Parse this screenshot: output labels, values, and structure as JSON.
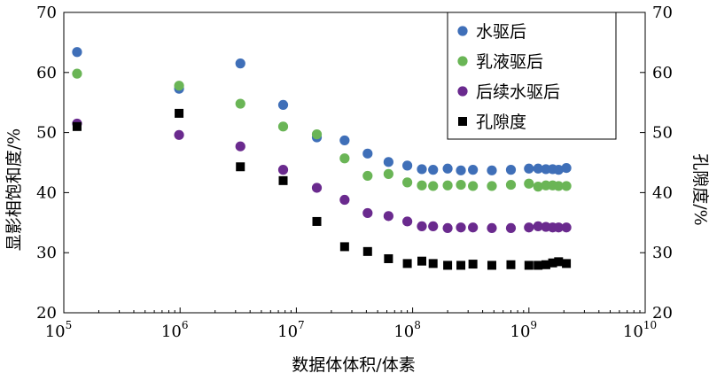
{
  "chart_data": {
    "type": "scatter",
    "xlabel": "数据体体积/体素",
    "ylabel_left": "显影相饱和度/%",
    "ylabel_right": "孔隙度/%",
    "x_scale": "log",
    "xlim": [
      100000,
      10000000000
    ],
    "ylim": [
      20,
      70
    ],
    "x_ticks": [
      {
        "value": 100000,
        "base": "10",
        "exp": "5"
      },
      {
        "value": 1000000,
        "base": "10",
        "exp": "6"
      },
      {
        "value": 10000000,
        "base": "10",
        "exp": "7"
      },
      {
        "value": 100000000,
        "base": "10",
        "exp": "8"
      },
      {
        "value": 1000000000,
        "base": "10",
        "exp": "9"
      },
      {
        "value": 10000000000,
        "base": "10",
        "exp": "10"
      }
    ],
    "y_ticks": [
      "20",
      "30",
      "40",
      "50",
      "60",
      "70"
    ],
    "legend_position": "top-right",
    "series": [
      {
        "name": "水驱后",
        "marker": "circle",
        "color": "#3F6FB8",
        "x": [
          130000,
          980000,
          3300000,
          7700000,
          15000000,
          26000000,
          41000000,
          62000000,
          90000000,
          120000000,
          150000000,
          200000000,
          260000000,
          330000000,
          480000000,
          700000000,
          1000000000,
          1200000000,
          1400000000,
          1600000000,
          1800000000,
          2100000000
        ],
        "y": [
          63.4,
          57.3,
          61.5,
          54.6,
          49.2,
          48.7,
          46.5,
          45.1,
          44.5,
          43.9,
          43.8,
          44.0,
          43.7,
          43.8,
          43.7,
          43.8,
          44.0,
          44.0,
          43.9,
          43.9,
          43.8,
          44.1
        ]
      },
      {
        "name": "乳液驱后",
        "marker": "circle",
        "color": "#6AB556",
        "x": [
          130000,
          980000,
          3300000,
          7700000,
          15000000,
          26000000,
          41000000,
          62000000,
          90000000,
          120000000,
          150000000,
          200000000,
          260000000,
          330000000,
          480000000,
          700000000,
          1000000000,
          1200000000,
          1400000000,
          1600000000,
          1800000000,
          2100000000
        ],
        "y": [
          59.8,
          57.8,
          54.8,
          51.0,
          49.7,
          45.7,
          42.8,
          43.1,
          41.7,
          41.2,
          41.1,
          41.2,
          41.3,
          41.1,
          41.1,
          41.3,
          41.5,
          41.0,
          41.2,
          41.2,
          41.1,
          41.1
        ]
      },
      {
        "name": "后续水驱后",
        "marker": "circle",
        "color": "#6A2A8E",
        "x": [
          130000,
          980000,
          3300000,
          7700000,
          15000000,
          26000000,
          41000000,
          62000000,
          90000000,
          120000000,
          150000000,
          200000000,
          260000000,
          330000000,
          480000000,
          700000000,
          1000000000,
          1200000000,
          1400000000,
          1600000000,
          1800000000,
          2100000000
        ],
        "y": [
          51.5,
          49.6,
          47.7,
          43.8,
          40.8,
          38.8,
          36.6,
          36.1,
          35.2,
          34.4,
          34.4,
          34.1,
          34.2,
          34.2,
          34.1,
          34.1,
          34.2,
          34.4,
          34.3,
          34.2,
          34.2,
          34.2
        ]
      },
      {
        "name": "孔隙度",
        "marker": "square",
        "color": "#000000",
        "x": [
          130000,
          980000,
          3300000,
          7700000,
          15000000,
          26000000,
          41000000,
          62000000,
          90000000,
          120000000,
          150000000,
          200000000,
          260000000,
          330000000,
          480000000,
          700000000,
          1000000000,
          1200000000,
          1400000000,
          1600000000,
          1800000000,
          2100000000
        ],
        "y": [
          51.0,
          53.2,
          44.3,
          42.0,
          35.2,
          31.0,
          30.2,
          29.0,
          28.2,
          28.6,
          28.2,
          27.9,
          27.9,
          28.1,
          27.9,
          28.0,
          27.9,
          27.9,
          28.0,
          28.3,
          28.5,
          28.2
        ]
      }
    ]
  }
}
